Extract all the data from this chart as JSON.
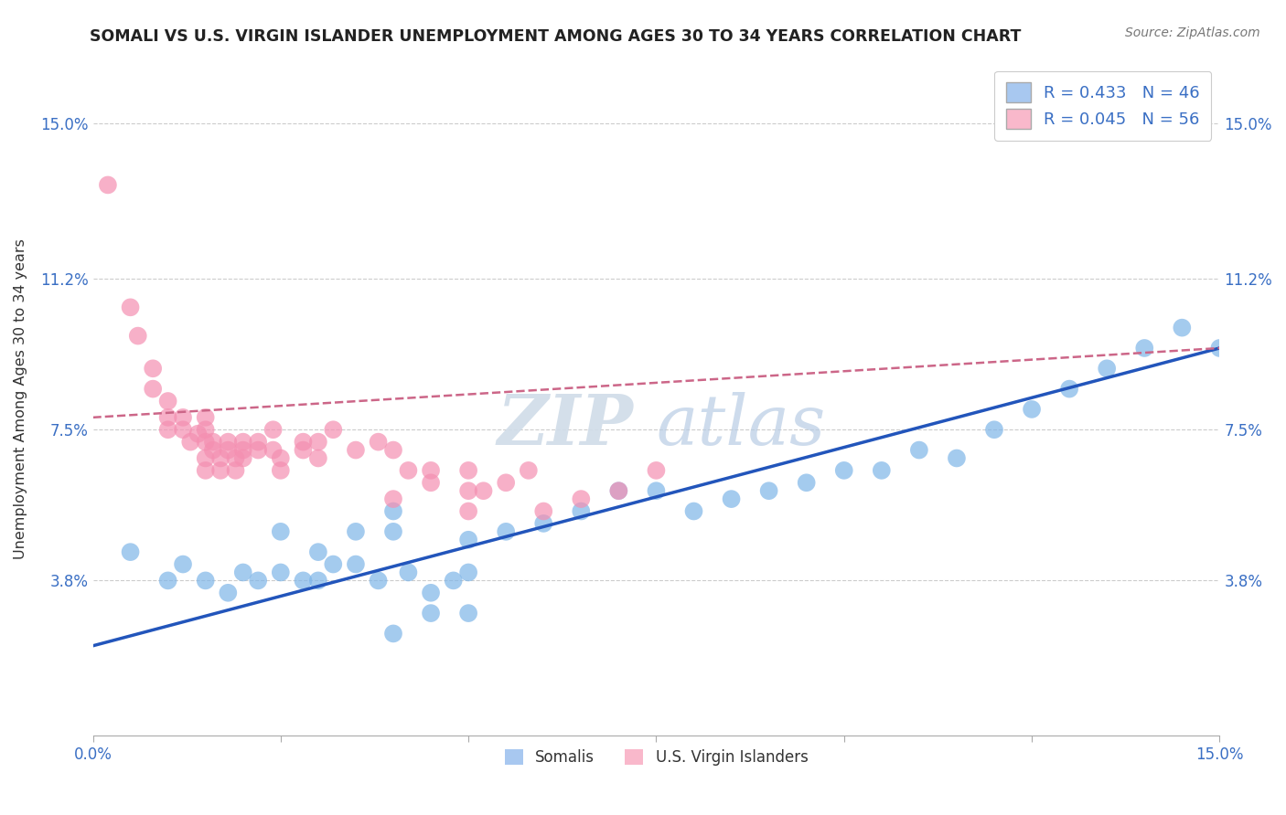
{
  "title": "SOMALI VS U.S. VIRGIN ISLANDER UNEMPLOYMENT AMONG AGES 30 TO 34 YEARS CORRELATION CHART",
  "source_text": "Source: ZipAtlas.com",
  "ylabel": "Unemployment Among Ages 30 to 34 years",
  "y_tick_labels": [
    "3.8%",
    "7.5%",
    "11.2%",
    "15.0%"
  ],
  "y_tick_values": [
    0.038,
    0.075,
    0.112,
    0.15
  ],
  "xlim": [
    0.0,
    0.15
  ],
  "ylim": [
    0.0,
    0.165
  ],
  "blue_color": "#a8c8f0",
  "blue_dot_color": "#7eb5e8",
  "pink_color": "#f9b8cb",
  "pink_dot_color": "#f48fb1",
  "blue_line_color": "#2255bb",
  "pink_line_color": "#cc6688",
  "somali_scatter": [
    [
      0.005,
      0.045
    ],
    [
      0.01,
      0.038
    ],
    [
      0.012,
      0.042
    ],
    [
      0.015,
      0.038
    ],
    [
      0.018,
      0.035
    ],
    [
      0.02,
      0.04
    ],
    [
      0.022,
      0.038
    ],
    [
      0.025,
      0.04
    ],
    [
      0.025,
      0.05
    ],
    [
      0.028,
      0.038
    ],
    [
      0.03,
      0.038
    ],
    [
      0.03,
      0.045
    ],
    [
      0.032,
      0.042
    ],
    [
      0.035,
      0.042
    ],
    [
      0.035,
      0.05
    ],
    [
      0.038,
      0.038
    ],
    [
      0.04,
      0.05
    ],
    [
      0.04,
      0.055
    ],
    [
      0.04,
      0.025
    ],
    [
      0.042,
      0.04
    ],
    [
      0.045,
      0.035
    ],
    [
      0.045,
      0.03
    ],
    [
      0.048,
      0.038
    ],
    [
      0.05,
      0.04
    ],
    [
      0.05,
      0.048
    ],
    [
      0.05,
      0.03
    ],
    [
      0.055,
      0.05
    ],
    [
      0.06,
      0.052
    ],
    [
      0.065,
      0.055
    ],
    [
      0.07,
      0.06
    ],
    [
      0.075,
      0.06
    ],
    [
      0.08,
      0.055
    ],
    [
      0.085,
      0.058
    ],
    [
      0.09,
      0.06
    ],
    [
      0.095,
      0.062
    ],
    [
      0.1,
      0.065
    ],
    [
      0.105,
      0.065
    ],
    [
      0.11,
      0.07
    ],
    [
      0.115,
      0.068
    ],
    [
      0.12,
      0.075
    ],
    [
      0.125,
      0.08
    ],
    [
      0.13,
      0.085
    ],
    [
      0.135,
      0.09
    ],
    [
      0.14,
      0.095
    ],
    [
      0.145,
      0.1
    ],
    [
      0.15,
      0.095
    ]
  ],
  "virgin_scatter": [
    [
      0.002,
      0.135
    ],
    [
      0.005,
      0.105
    ],
    [
      0.006,
      0.098
    ],
    [
      0.008,
      0.085
    ],
    [
      0.008,
      0.09
    ],
    [
      0.01,
      0.075
    ],
    [
      0.01,
      0.078
    ],
    [
      0.01,
      0.082
    ],
    [
      0.012,
      0.075
    ],
    [
      0.012,
      0.078
    ],
    [
      0.013,
      0.072
    ],
    [
      0.014,
      0.074
    ],
    [
      0.015,
      0.068
    ],
    [
      0.015,
      0.072
    ],
    [
      0.015,
      0.075
    ],
    [
      0.015,
      0.078
    ],
    [
      0.015,
      0.065
    ],
    [
      0.016,
      0.07
    ],
    [
      0.016,
      0.072
    ],
    [
      0.017,
      0.068
    ],
    [
      0.017,
      0.065
    ],
    [
      0.018,
      0.07
    ],
    [
      0.018,
      0.072
    ],
    [
      0.019,
      0.068
    ],
    [
      0.019,
      0.065
    ],
    [
      0.02,
      0.07
    ],
    [
      0.02,
      0.072
    ],
    [
      0.02,
      0.068
    ],
    [
      0.022,
      0.07
    ],
    [
      0.022,
      0.072
    ],
    [
      0.024,
      0.07
    ],
    [
      0.024,
      0.075
    ],
    [
      0.025,
      0.065
    ],
    [
      0.025,
      0.068
    ],
    [
      0.028,
      0.07
    ],
    [
      0.028,
      0.072
    ],
    [
      0.03,
      0.068
    ],
    [
      0.03,
      0.072
    ],
    [
      0.032,
      0.075
    ],
    [
      0.035,
      0.07
    ],
    [
      0.038,
      0.072
    ],
    [
      0.04,
      0.07
    ],
    [
      0.04,
      0.058
    ],
    [
      0.042,
      0.065
    ],
    [
      0.045,
      0.062
    ],
    [
      0.045,
      0.065
    ],
    [
      0.05,
      0.055
    ],
    [
      0.05,
      0.06
    ],
    [
      0.05,
      0.065
    ],
    [
      0.052,
      0.06
    ],
    [
      0.055,
      0.062
    ],
    [
      0.058,
      0.065
    ],
    [
      0.06,
      0.055
    ],
    [
      0.065,
      0.058
    ],
    [
      0.07,
      0.06
    ],
    [
      0.075,
      0.065
    ]
  ],
  "somali_trend": [
    0.0,
    0.15,
    0.022,
    0.095
  ],
  "virgin_trend": [
    0.0,
    0.15,
    0.078,
    0.095
  ],
  "x_ticks_minor": [
    0.0,
    0.025,
    0.05,
    0.075,
    0.1,
    0.125,
    0.15
  ]
}
